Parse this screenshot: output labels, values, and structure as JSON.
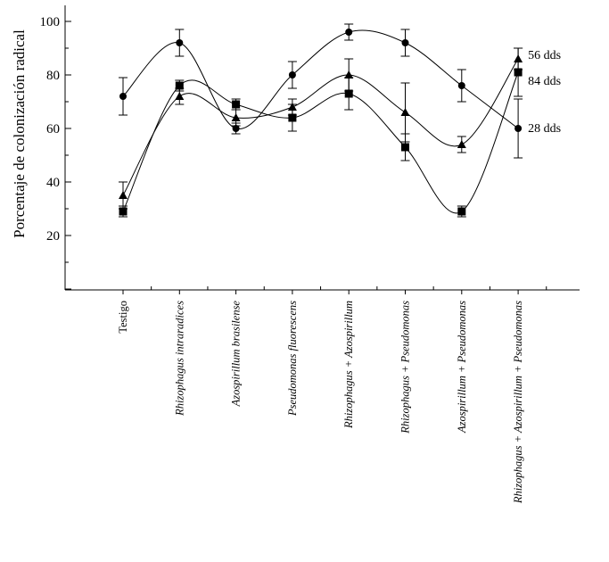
{
  "chart_data": {
    "type": "line",
    "title": "",
    "xlabel": "",
    "ylabel": "Porcentaje de colonización radical",
    "ylim": [
      0,
      105
    ],
    "yticks": [
      20,
      40,
      60,
      80,
      100
    ],
    "categories": [
      "Testigo",
      "Rhizophagus intraradices",
      "Azospirillum brasilense",
      "Pseudomonas fluorescens",
      "Rhizophagus + Azospirillum",
      "Rhizophagus + Pseudomonas",
      "Azospirillum + Pseudomonas",
      "Rhizophagus + Azospirillum + Pseudomonas"
    ],
    "series": [
      {
        "name": "28 dds",
        "marker": "circle",
        "values": [
          72,
          92,
          60,
          80,
          96,
          92,
          76,
          60
        ],
        "errors": [
          7,
          5,
          2,
          5,
          3,
          5,
          6,
          11
        ]
      },
      {
        "name": "56 dds",
        "marker": "triangle",
        "values": [
          35,
          72,
          64,
          68,
          80,
          66,
          54,
          86
        ],
        "errors": [
          5,
          3,
          3,
          3,
          6,
          11,
          3,
          4
        ]
      },
      {
        "name": "84 dds",
        "marker": "square",
        "values": [
          29,
          76,
          69,
          64,
          73,
          53,
          29,
          81
        ],
        "errors": [
          2,
          2,
          2,
          5,
          6,
          5,
          2,
          9
        ]
      }
    ],
    "legend": "inline labels at right end of series",
    "grid": false
  }
}
